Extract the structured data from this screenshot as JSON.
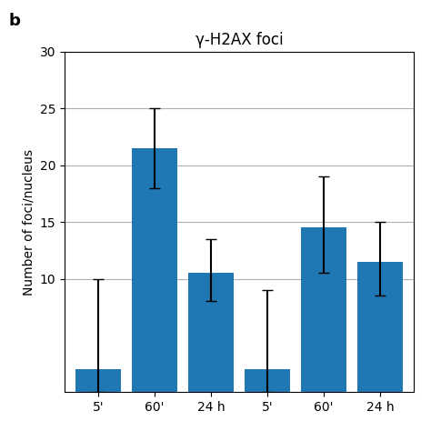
{
  "chart_data": {
    "type": "bar",
    "title": "γ-H2AX foci",
    "y_label": "Number of foci/nucleus",
    "categories": [
      "5'",
      "60'",
      "24 h",
      "5'",
      "60'",
      "24 h"
    ],
    "values": [
      2.0,
      21.5,
      10.5,
      2.0,
      14.5,
      11.5
    ],
    "error_plus": [
      8.0,
      3.5,
      3.0,
      7.0,
      4.5,
      3.5
    ],
    "error_minus": [
      2.0,
      3.5,
      2.5,
      2.0,
      4.0,
      3.0
    ],
    "ylim": [
      0,
      30
    ],
    "yticks": [
      10,
      15,
      20,
      25,
      30
    ],
    "grid": true,
    "annotations": [
      "b"
    ]
  }
}
